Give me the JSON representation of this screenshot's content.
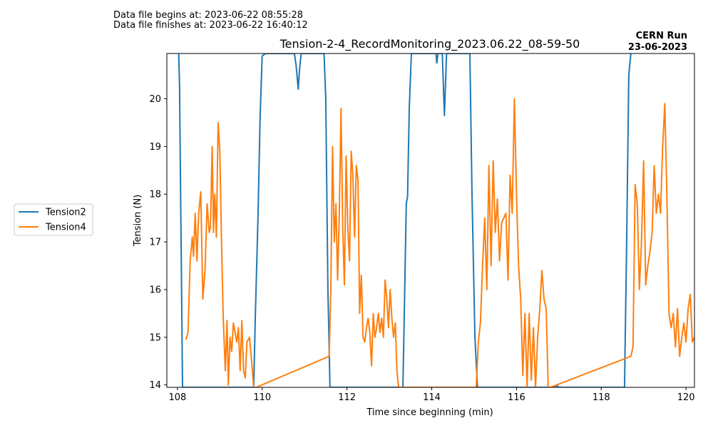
{
  "header": {
    "begin_line": "Data file begins at: 2023-06-22 08:55:28",
    "finish_line": "Data file finishes at: 2023-06-22 16:40:12",
    "run_label": "CERN Run",
    "run_date": "23-06-2023"
  },
  "chart_data": {
    "type": "line",
    "title": "Tension-2-4_RecordMonitoring_2023.06.22_08-59-50",
    "xlabel": "Time since beginning (min)",
    "ylabel": "Tension (N)",
    "xlim": [
      107.75,
      120.2
    ],
    "ylim": [
      13.95,
      20.95
    ],
    "x_ticks": [
      108,
      110,
      112,
      114,
      116,
      118,
      120
    ],
    "y_ticks": [
      14,
      15,
      16,
      17,
      18,
      19,
      20
    ],
    "grid": false,
    "legend_position": "outside-left",
    "series": [
      {
        "name": "Tension2",
        "color": "#1f77b4",
        "x": [
          108.03,
          108.05,
          108.12,
          108.15,
          109.8,
          109.84,
          109.9,
          109.95,
          110.0,
          110.08,
          110.76,
          110.8,
          110.85,
          110.88,
          110.92,
          111.46,
          111.5,
          111.55,
          111.6,
          113.32,
          113.36,
          113.4,
          113.43,
          113.47,
          113.52,
          114.1,
          114.12,
          114.15,
          114.25,
          114.3,
          114.35,
          114.39,
          114.9,
          114.95,
          115.02,
          115.08,
          116.9,
          116.95,
          117.0,
          118.55,
          118.6,
          118.65,
          118.7
        ],
        "y": [
          20.95,
          20.3,
          13.95,
          13.95,
          13.95,
          15.5,
          17.5,
          19.6,
          20.9,
          20.95,
          20.95,
          20.7,
          20.2,
          20.6,
          20.95,
          20.95,
          20.0,
          16.0,
          13.95,
          13.95,
          15.8,
          17.8,
          17.95,
          19.8,
          20.95,
          20.95,
          20.75,
          20.95,
          20.95,
          19.65,
          20.95,
          20.95,
          20.95,
          18.0,
          15.0,
          13.95,
          13.95,
          14.0,
          13.95,
          13.95,
          17.0,
          20.5,
          20.95
        ]
      },
      {
        "name": "Tension4",
        "color": "#ff7f0e",
        "x": [
          108.2,
          108.25,
          108.3,
          108.35,
          108.38,
          108.42,
          108.46,
          108.5,
          108.55,
          108.6,
          108.65,
          108.7,
          108.75,
          108.78,
          108.82,
          108.85,
          108.88,
          108.92,
          108.96,
          109.0,
          109.04,
          109.08,
          109.13,
          109.17,
          109.2,
          109.24,
          109.28,
          109.32,
          109.36,
          109.4,
          109.44,
          109.48,
          109.52,
          109.56,
          109.6,
          109.64,
          109.7,
          109.75,
          109.8,
          109.86,
          111.58,
          111.62,
          111.66,
          111.7,
          111.74,
          111.78,
          111.82,
          111.86,
          111.9,
          111.94,
          111.98,
          112.02,
          112.06,
          112.1,
          112.14,
          112.18,
          112.22,
          112.26,
          112.3,
          112.34,
          112.38,
          112.42,
          112.46,
          112.5,
          112.54,
          112.58,
          112.62,
          112.66,
          112.7,
          112.74,
          112.78,
          112.82,
          112.86,
          112.9,
          112.94,
          112.98,
          113.02,
          113.06,
          113.1,
          113.14,
          113.18,
          113.22,
          113.26,
          113.3,
          115.05,
          115.1,
          115.15,
          115.2,
          115.25,
          115.3,
          115.35,
          115.4,
          115.45,
          115.5,
          115.55,
          115.6,
          115.65,
          115.7,
          115.75,
          115.8,
          115.85,
          115.9,
          115.95,
          116.0,
          116.05,
          116.1,
          116.15,
          116.2,
          116.25,
          116.3,
          116.35,
          116.4,
          116.45,
          116.5,
          116.55,
          116.6,
          116.65,
          116.7,
          116.75,
          116.8,
          118.7,
          118.75,
          118.8,
          118.85,
          118.9,
          118.95,
          119.0,
          119.05,
          119.1,
          119.15,
          119.2,
          119.25,
          119.3,
          119.35,
          119.4,
          119.45,
          119.5,
          119.55,
          119.6,
          119.65,
          119.7,
          119.75,
          119.8,
          119.85,
          119.9,
          119.95,
          120.0,
          120.05,
          120.1,
          120.15,
          120.2
        ],
        "y": [
          14.95,
          15.1,
          16.6,
          17.1,
          16.7,
          17.6,
          16.6,
          17.6,
          18.05,
          15.8,
          16.4,
          17.8,
          17.2,
          17.3,
          19.0,
          17.2,
          18.0,
          17.1,
          19.5,
          18.9,
          17.0,
          15.4,
          14.3,
          15.35,
          14.0,
          15.0,
          14.7,
          15.3,
          15.1,
          14.9,
          15.2,
          14.3,
          15.35,
          14.3,
          14.15,
          14.9,
          15.0,
          14.5,
          13.95,
          13.95,
          14.6,
          16.0,
          19.0,
          17.0,
          17.8,
          16.2,
          17.6,
          19.8,
          17.3,
          16.1,
          18.8,
          17.3,
          16.6,
          18.9,
          18.4,
          17.1,
          18.6,
          18.3,
          15.5,
          16.3,
          15.0,
          14.9,
          15.2,
          15.4,
          15.1,
          14.4,
          15.5,
          15.0,
          15.2,
          15.5,
          15.1,
          15.4,
          15.0,
          16.2,
          15.8,
          15.2,
          16.0,
          15.4,
          15.0,
          15.3,
          14.3,
          13.95,
          13.95,
          13.95,
          13.95,
          14.9,
          15.3,
          16.5,
          17.5,
          16.0,
          18.6,
          16.5,
          18.7,
          17.2,
          17.9,
          16.6,
          17.4,
          17.5,
          17.6,
          16.2,
          18.4,
          17.6,
          20.0,
          18.0,
          16.5,
          15.8,
          14.2,
          15.5,
          13.95,
          15.5,
          14.1,
          15.2,
          13.95,
          15.0,
          15.6,
          16.4,
          15.8,
          15.6,
          13.95,
          13.95,
          14.6,
          14.8,
          18.2,
          17.8,
          16.0,
          17.0,
          18.7,
          16.1,
          16.5,
          16.8,
          17.2,
          18.6,
          17.6,
          18.0,
          17.6,
          19.0,
          19.9,
          17.9,
          15.5,
          15.2,
          15.5,
          14.8,
          15.6,
          14.6,
          15.0,
          15.3,
          14.9,
          15.6,
          15.9,
          14.9,
          15.0
        ]
      }
    ]
  }
}
